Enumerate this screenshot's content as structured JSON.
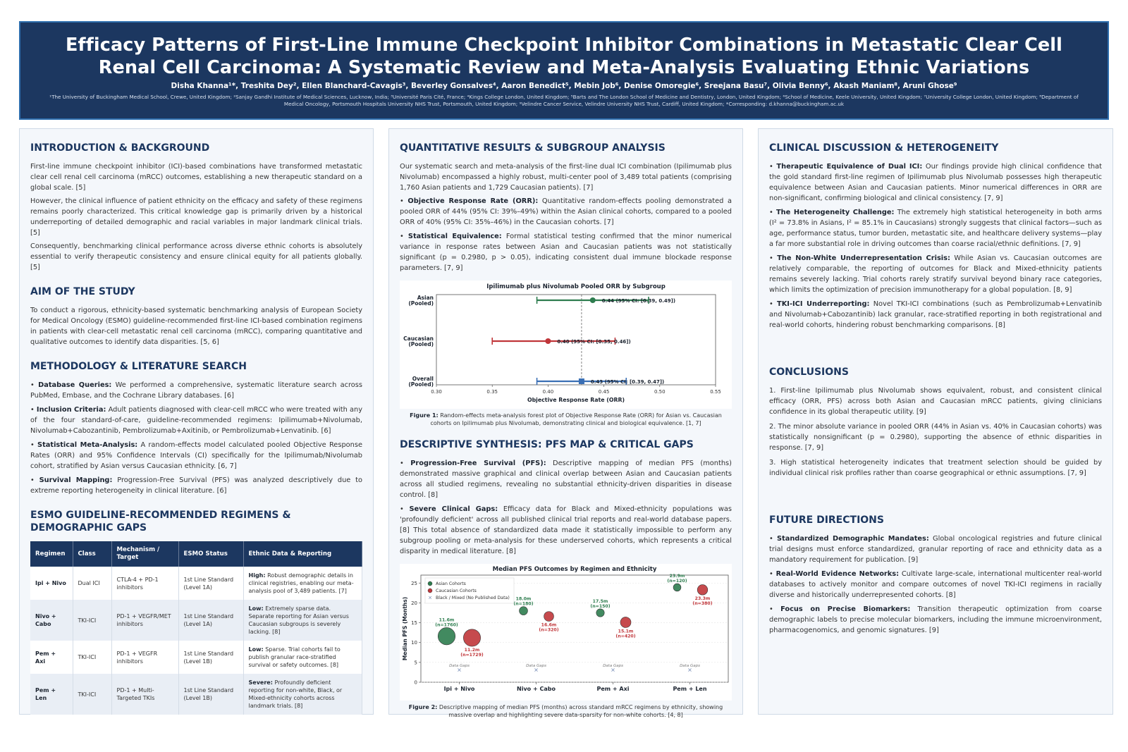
{
  "header": {
    "title_line1": "Efficacy Patterns of First-Line Immune Checkpoint Inhibitor Combinations in Metastatic Clear Cell",
    "title_line2": "Renal Cell Carcinoma: A Systematic Review and Meta-Analysis Evaluating Ethnic Variations",
    "authors": "Disha Khanna¹*, Treshita Dey², Ellen Blanchard-Cavagis³, Beverley Gonsalves⁴, Aaron Benedict⁵, Mebin Job⁶, Denise Omoregie⁶, Sreejana Basu⁷, Olivia Benny⁶, Akash Maniam⁸, Aruni Ghose⁹",
    "affiliations": "¹The University of Buckingham Medical School, Crewe, United Kingdom; ²Sanjay Gandhi Institute of Medical Sciences, Lucknow, India; ³Université Paris Cité, France; ⁴Kings College London, United Kingdom; ⁵Barts and The London School of Medicine and Dentistry, London, United Kingdom; ⁶School of Medicine, Keele University, United Kingdom; ⁷University College London, United Kingdom; ⁸Department of Medical Oncology, Portsmouth Hospitals University NHS Trust, Portsmouth, United Kingdom; ⁹Velindre Cancer Service, Velindre University NHS Trust, Cardiff, United Kingdom; *Corresponding: d.khanna@buckingham.ac.uk"
  },
  "intro": {
    "heading": "INTRODUCTION & BACKGROUND",
    "p1": "First-line immune checkpoint inhibitor (ICI)-based combinations have transformed metastatic clear cell renal cell carcinoma (mRCC) outcomes, establishing a new therapeutic standard on a global scale. [5]",
    "p2": "However, the clinical influence of patient ethnicity on the efficacy and safety of these regimens remains poorly characterized. This critical knowledge gap is primarily driven by a historical underreporting of detailed demographic and racial variables in major landmark clinical trials. [5]",
    "p3": "Consequently, benchmarking clinical performance across diverse ethnic cohorts is absolutely essential to verify therapeutic consistency and ensure clinical equity for all patients globally. [5]"
  },
  "aim": {
    "heading": "AIM OF THE STUDY",
    "p1": "To conduct a rigorous, ethnicity-based systematic benchmarking analysis of European Society for Medical Oncology (ESMO) guideline-recommended first-line ICI-based combination regimens in patients with clear-cell metastatic renal cell carcinoma (mRCC), comparing quantitative and qualitative outcomes to identify data disparities. [5, 6]"
  },
  "methods": {
    "heading": "METHODOLOGY & LITERATURE SEARCH",
    "items": [
      {
        "label": "Database Queries:",
        "text": " We performed a comprehensive, systematic literature search across PubMed, Embase, and the Cochrane Library databases. [6]"
      },
      {
        "label": "Inclusion Criteria:",
        "text": " Adult patients diagnosed with clear-cell mRCC who were treated with any of the four standard-of-care, guideline-recommended regimens: Ipilimumab+Nivolumab, Nivolumab+Cabozantinib, Pembrolizumab+Axitinib, or Pembrolizumab+Lenvatinib. [6]"
      },
      {
        "label": "Statistical Meta-Analysis:",
        "text": " A random-effects model calculated pooled Objective Response Rates (ORR) and 95% Confidence Intervals (CI) specifically for the Ipilimumab/Nivolumab cohort, stratified by Asian versus Caucasian ethnicity. [6, 7]"
      },
      {
        "label": "Survival Mapping:",
        "text": " Progression-Free Survival (PFS) was analyzed descriptively due to extreme reporting heterogeneity in clinical literature. [6]"
      }
    ]
  },
  "regimens": {
    "heading_line1": "ESMO GUIDELINE-RECOMMENDED REGIMENS &",
    "heading_line2": "DEMOGRAPHIC GAPS",
    "columns": [
      "Regimen",
      "Class",
      "Mechanism / Target",
      "ESMO Status",
      "Ethnic Data & Reporting"
    ],
    "rows": [
      {
        "regimen": "Ipi + Nivo",
        "class": "Dual ICI",
        "mechanism": "CTLA-4 + PD-1 inhibitors",
        "status": "1st Line Standard (Level 1A)",
        "level": "High:",
        "detail": " Robust demographic details in clinical registries, enabling our meta-analysis pool of 3,489 patients. [7]"
      },
      {
        "regimen": "Nivo + Cabo",
        "class": "TKI-ICI",
        "mechanism": "PD-1 + VEGFR/MET inhibitors",
        "status": "1st Line Standard (Level 1A)",
        "level": "Low:",
        "detail": " Extremely sparse data. Separate reporting for Asian versus Caucasian subgroups is severely lacking. [8]"
      },
      {
        "regimen": "Pem + Axi",
        "class": "TKI-ICI",
        "mechanism": "PD-1 + VEGFR inhibitors",
        "status": "1st Line Standard (Level 1B)",
        "level": "Low:",
        "detail": " Sparse. Trial cohorts fail to publish granular race-stratified survival or safety outcomes. [8]"
      },
      {
        "regimen": "Pem + Len",
        "class": "TKI-ICI",
        "mechanism": "PD-1 + Multi-Targeted TKIs",
        "status": "1st Line Standard (Level 1B)",
        "level": "Severe:",
        "detail": " Profoundly deficient reporting for non-white, Black, or Mixed-ethnicity cohorts across landmark trials. [8]"
      }
    ]
  },
  "results": {
    "heading": "QUANTITATIVE RESULTS & SUBGROUP ANALYSIS",
    "p1": "Our systematic search and meta-analysis of the first-line dual ICI combination (Ipilimumab plus Nivolumab) encompassed a highly robust, multi-center pool of 3,489 total patients (comprising 1,760 Asian patients and 1,729 Caucasian patients). [7]",
    "items": [
      {
        "label": "Objective Response Rate (ORR):",
        "text": " Quantitative random-effects pooling demonstrated a pooled ORR of 44% (95% CI: 39%–49%) within the Asian clinical cohorts, compared to a pooled ORR of 40% (95% CI: 35%–46%) in the Caucasian cohorts. [7]"
      },
      {
        "label": "Statistical Equivalence:",
        "text": " Formal statistical testing confirmed that the minor numerical variance in response rates between Asian and Caucasian patients was not statistically significant (p = 0.2980, p > 0.05), indicating consistent dual immune blockade response parameters. [7, 9]"
      }
    ],
    "fig1_caption_label": "Figure 1:",
    "fig1_caption": " Random-effects meta-analysis forest plot of Objective Response Rate (ORR) for Asian vs. Caucasian cohorts on Ipilimumab plus Nivolumab, demonstrating clinical and biological equivalence. [1, 7]"
  },
  "pfs": {
    "heading": "DESCRIPTIVE SYNTHESIS: PFS MAP & CRITICAL GAPS",
    "items": [
      {
        "label": "Progression-Free Survival (PFS):",
        "text": " Descriptive mapping of median PFS (months) demonstrated massive graphical and clinical overlap between Asian and Caucasian patients across all studied regimens, revealing no substantial ethnicity-driven disparities in disease control. [8]"
      },
      {
        "label": "Severe Clinical Gaps:",
        "text": " Efficacy data for Black and Mixed-ethnicity populations was 'profoundly deficient' across all published clinical trial reports and real-world database papers. [8] This total absence of standardized data made it statistically impossible to perform any subgroup pooling or meta-analysis for these underserved cohorts, which represents a critical disparity in medical literature. [8]"
      }
    ],
    "fig2_caption_label": "Figure 2:",
    "fig2_caption": " Descriptive mapping of median PFS (months) across standard mRCC regimens by ethnicity, showing massive overlap and highlighting severe data-sparsity for non-white cohorts. [4, 8]"
  },
  "discussion": {
    "heading": "CLINICAL DISCUSSION & HETEROGENEITY",
    "items": [
      {
        "label": "Therapeutic Equivalence of Dual ICI:",
        "text": " Our findings provide high clinical confidence that the gold standard first-line regimen of Ipilimumab plus Nivolumab possesses high therapeutic equivalence between Asian and Caucasian patients. Minor numerical differences in ORR are non-significant, confirming biological and clinical consistency. [7, 9]"
      },
      {
        "label": "The Heterogeneity Challenge:",
        "text": " The extremely high statistical heterogeneity in both arms (I² = 73.8% in Asians, I² = 85.1% in Caucasians) strongly suggests that clinical factors—such as age, performance status, tumor burden, metastatic site, and healthcare delivery systems—play a far more substantial role in driving outcomes than coarse racial/ethnic definitions. [7, 9]"
      },
      {
        "label": "The Non-White Underrepresentation Crisis:",
        "text": " While Asian vs. Caucasian outcomes are relatively comparable, the reporting of outcomes for Black and Mixed-ethnicity patients remains severely lacking. Trial cohorts rarely stratify survival beyond binary race categories, which limits the optimization of precision immunotherapy for a global population. [8, 9]"
      },
      {
        "label": "TKI-ICI Underreporting:",
        "text": " Novel TKI-ICI combinations (such as Pembrolizumab+Lenvatinib and Nivolumab+Cabozantinib) lack granular, race-stratified reporting in both registrational and real-world cohorts, hindering robust benchmarking comparisons. [8]"
      }
    ]
  },
  "conclusions": {
    "heading": "CONCLUSIONS",
    "items": [
      "1. First-line Ipilimumab plus Nivolumab shows equivalent, robust, and consistent clinical efficacy (ORR, PFS) across both Asian and Caucasian mRCC patients, giving clinicians confidence in its global therapeutic utility. [9]",
      "2. The minor absolute variance in pooled ORR (44% in Asian vs. 40% in Caucasian cohorts) was statistically nonsignificant (p = 0.2980), supporting the absence of ethnic disparities in response. [7, 9]",
      "3. High statistical heterogeneity indicates that treatment selection should be guided by individual clinical risk profiles rather than coarse geographical or ethnic assumptions. [7, 9]"
    ]
  },
  "future": {
    "heading": "FUTURE DIRECTIONS",
    "items": [
      {
        "label": "Standardized Demographic Mandates:",
        "text": " Global oncological registries and future clinical trial designs must enforce standardized, granular reporting of race and ethnicity data as a mandatory requirement for publication. [9]"
      },
      {
        "label": "Real-World Evidence Networks:",
        "text": " Cultivate large-scale, international multicenter real-world databases to actively monitor and compare outcomes of novel TKI-ICI regimens in racially diverse and historically underrepresented cohorts. [8]"
      },
      {
        "label": "Focus on Precise Biomarkers:",
        "text": " Transition therapeutic optimization from coarse demographic labels to precise molecular biomarkers, including the immune microenvironment, pharmacogenomics, and genomic signatures. [9]"
      }
    ]
  },
  "chart_data": [
    {
      "type": "scatter",
      "subtype": "forest",
      "title": "Ipilimumab plus Nivolumab Pooled ORR by Subgroup",
      "xlabel": "Objective Response Rate (ORR)",
      "xlim": [
        0.3,
        0.55
      ],
      "xticks": [
        "0.30",
        "0.35",
        "0.40",
        "0.45",
        "0.50",
        "0.55"
      ],
      "reference_line": 0.43,
      "grid": false,
      "rows": [
        {
          "label1": "Asian",
          "label2": "(Pooled)",
          "estimate": 0.44,
          "lo": 0.39,
          "hi": 0.49,
          "text": "0.44 (95% CI: [0.39, 0.49])",
          "color": "#2e7d4f",
          "marker": "circle"
        },
        {
          "label1": "Caucasian",
          "label2": "(Pooled)",
          "estimate": 0.4,
          "lo": 0.35,
          "hi": 0.46,
          "text": "0.40 (95% CI: [0.35, 0.46])",
          "color": "#c0363a",
          "marker": "circle"
        },
        {
          "label1": "Overall",
          "label2": "(Pooled)",
          "estimate": 0.43,
          "lo": 0.39,
          "hi": 0.47,
          "text": "0.43 (95% CI: [0.39, 0.47])",
          "color": "#3a6fb5",
          "marker": "square"
        }
      ]
    },
    {
      "type": "scatter",
      "title": "Median PFS Outcomes by Regimen and Ethnicity",
      "xlabel": "",
      "ylabel": "Median PFS (Months)",
      "ylim": [
        0,
        27
      ],
      "yticks": [
        0,
        5,
        10,
        15,
        20,
        25
      ],
      "categories": [
        "Ipi + Nivo",
        "Nivo + Cabo",
        "Pem + Axi",
        "Pem + Len"
      ],
      "legend_position": "top-left",
      "legend": [
        "Asian Cohorts",
        "Caucasian Cohorts",
        "Black / Mixed (No Published Data)"
      ],
      "gap_label": "Data Gaps",
      "gap_value": 3,
      "series": [
        {
          "name": "Asian Cohorts",
          "color": "#2e7d4f",
          "points": [
            {
              "category": "Ipi + Nivo",
              "pfs": 11.6,
              "n": 1760,
              "label1": "11.6m",
              "label2": "(n=1760)"
            },
            {
              "category": "Nivo + Cabo",
              "pfs": 18.0,
              "n": 180,
              "label1": "18.0m",
              "label2": "(n=180)"
            },
            {
              "category": "Pem + Axi",
              "pfs": 17.5,
              "n": 150,
              "label1": "17.5m",
              "label2": "(n=150)"
            },
            {
              "category": "Pem + Len",
              "pfs": 23.9,
              "n": 120,
              "label1": "23.9m",
              "label2": "(n=120)"
            }
          ]
        },
        {
          "name": "Caucasian Cohorts",
          "color": "#c0363a",
          "points": [
            {
              "category": "Ipi + Nivo",
              "pfs": 11.2,
              "n": 1729,
              "label1": "11.2m",
              "label2": "(n=1729)"
            },
            {
              "category": "Nivo + Cabo",
              "pfs": 16.6,
              "n": 320,
              "label1": "16.6m",
              "label2": "(n=320)"
            },
            {
              "category": "Pem + Axi",
              "pfs": 15.1,
              "n": 420,
              "label1": "15.1m",
              "label2": "(n=420)"
            },
            {
              "category": "Pem + Len",
              "pfs": 23.3,
              "n": 380,
              "label1": "23.3m",
              "label2": "(n=380)"
            }
          ]
        },
        {
          "name": "Black / Mixed (No Published Data)",
          "color": "#7a8fb8",
          "points": []
        }
      ]
    }
  ]
}
